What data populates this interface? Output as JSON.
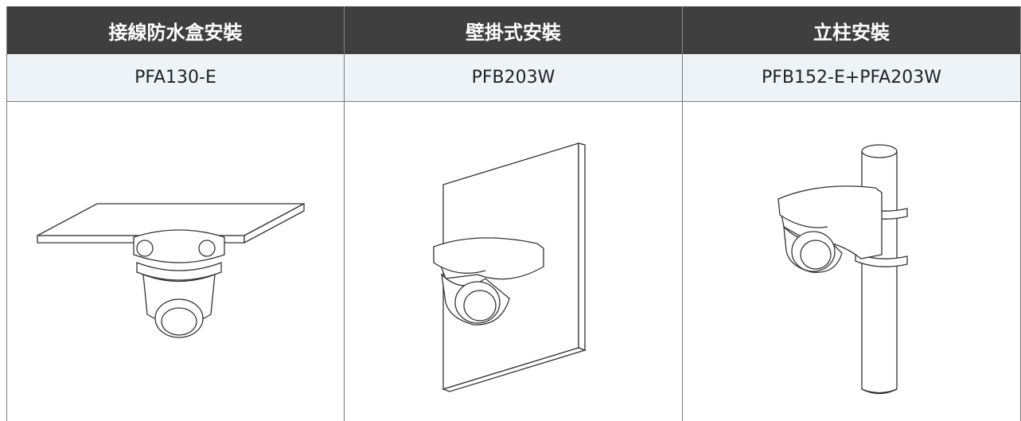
{
  "table": {
    "header": [
      "接線防水盒安裝",
      "壁掛式安裝",
      "立柱安裝"
    ],
    "rows": [
      [
        "PFA130-E",
        "PFB203W",
        "PFB152-E+PFA203W"
      ]
    ]
  }
}
